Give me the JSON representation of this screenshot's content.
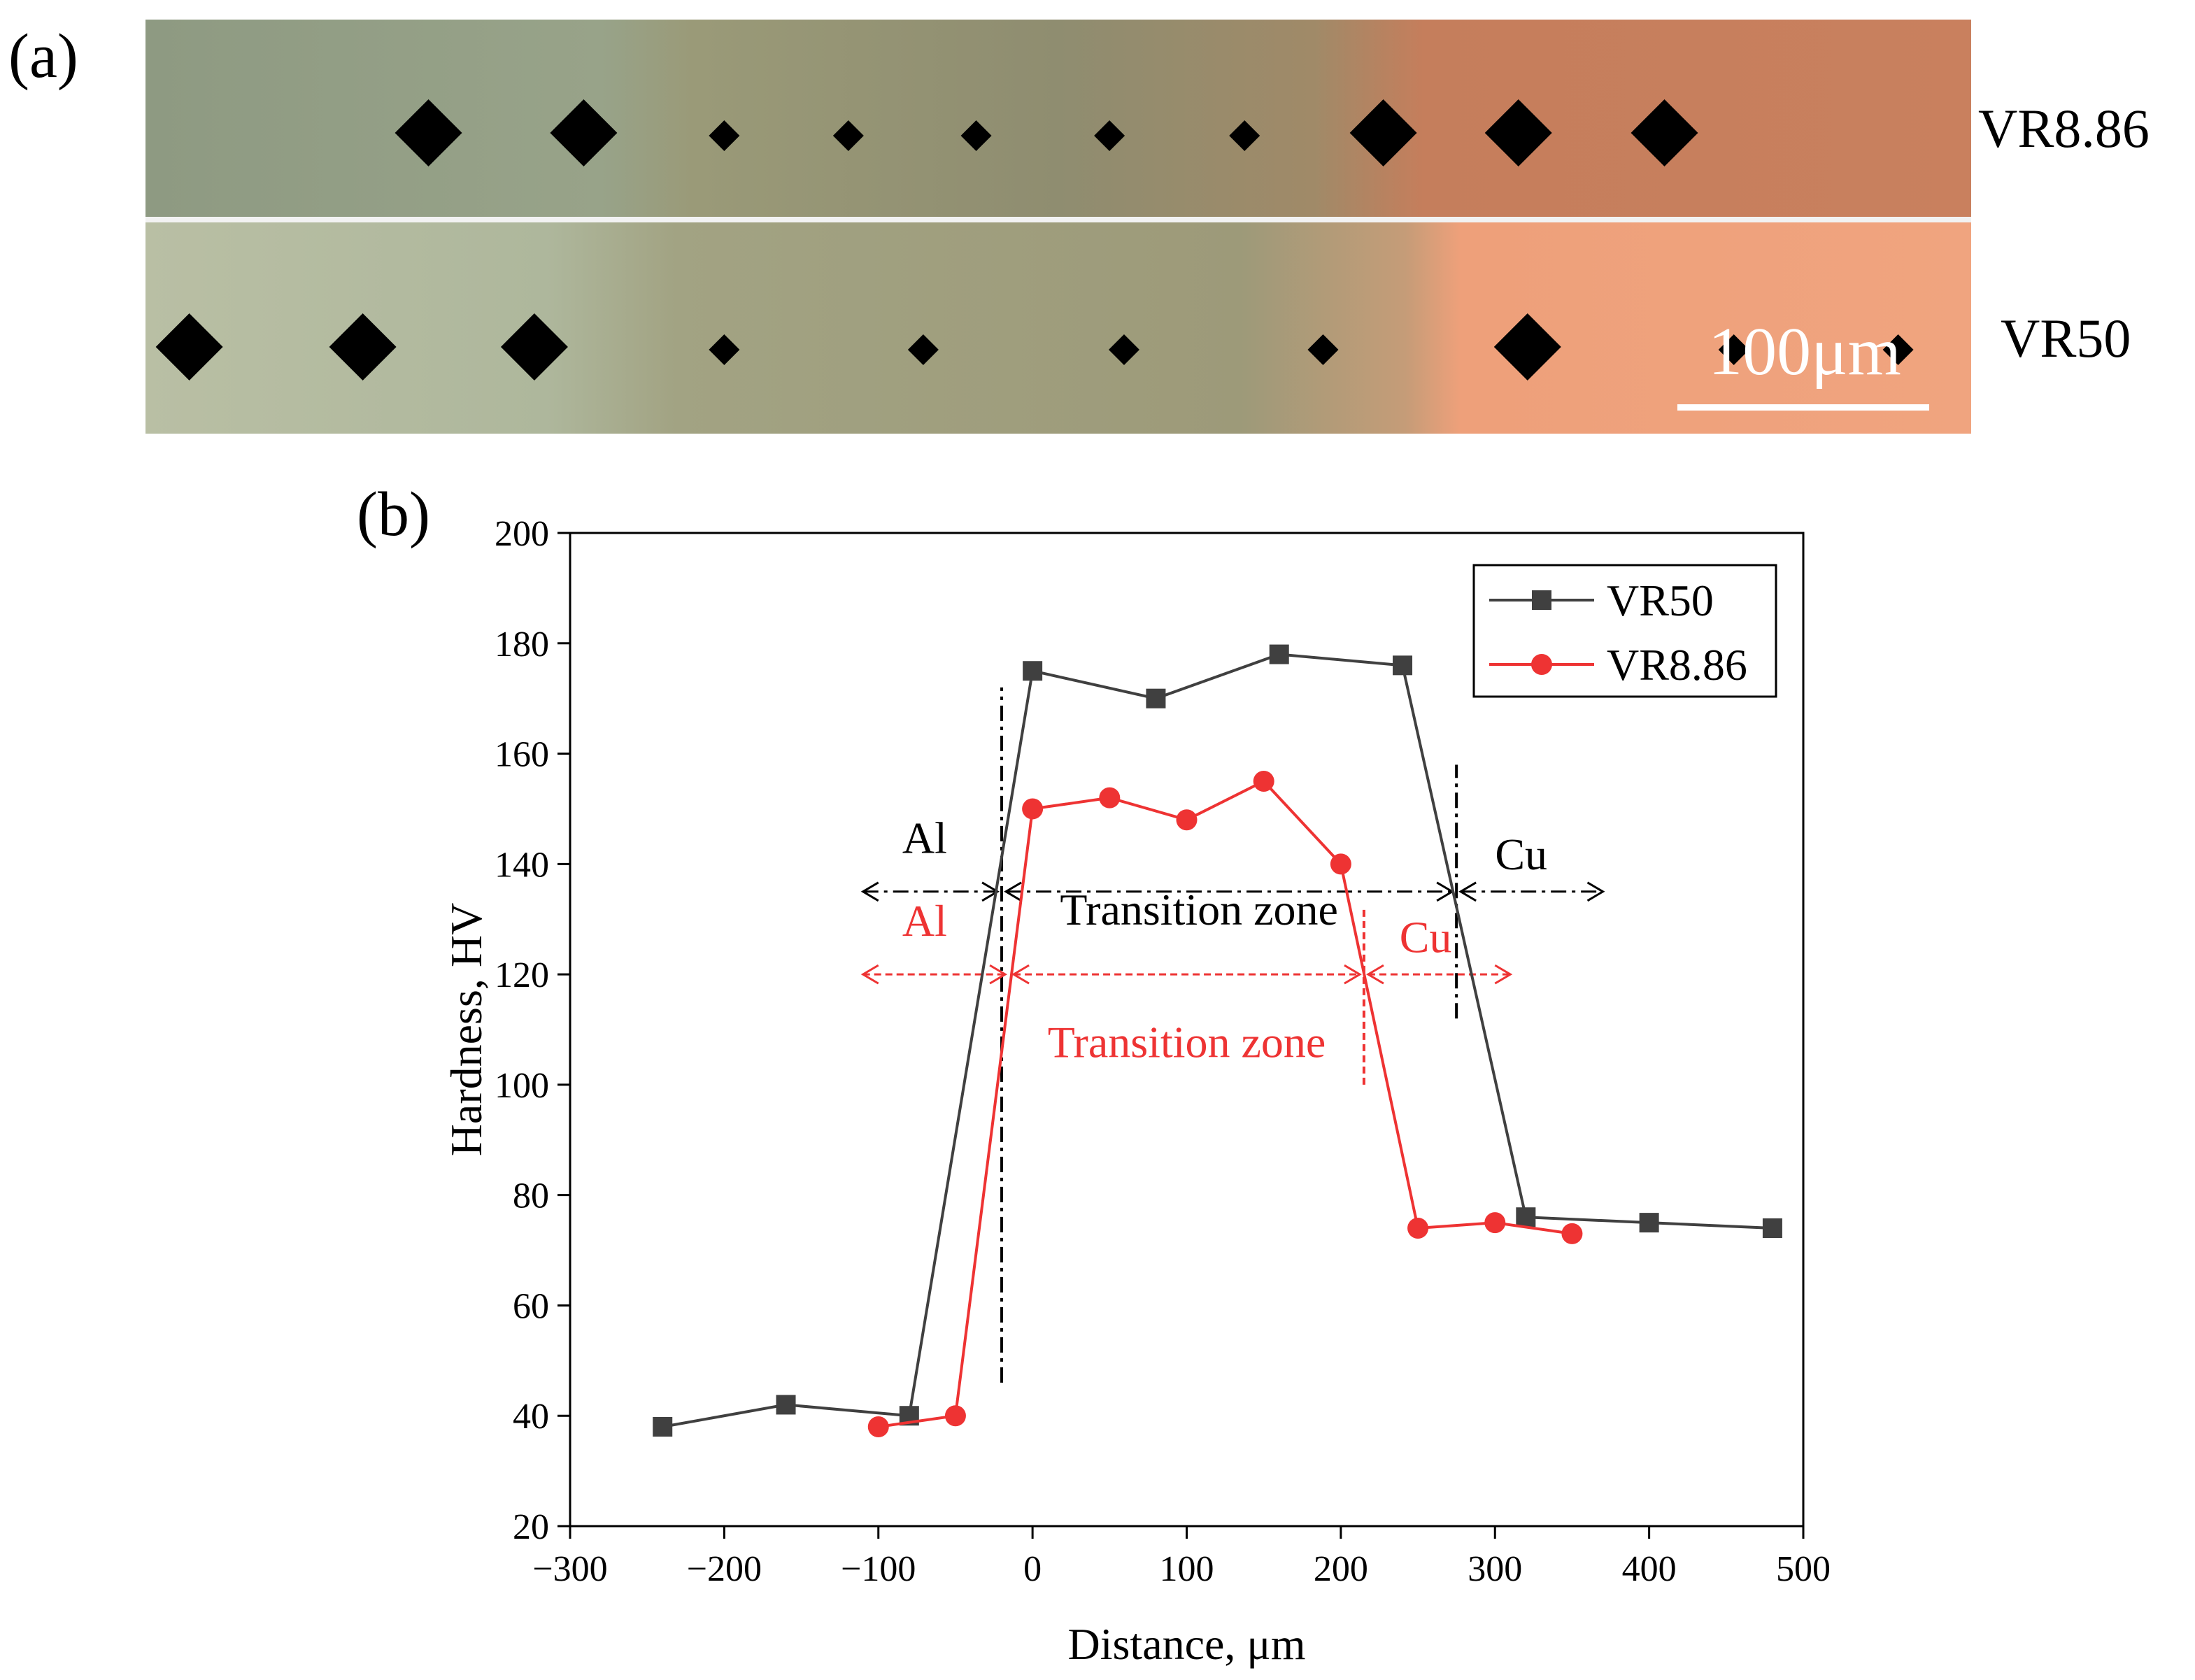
{
  "panel_a": {
    "label": "(a)",
    "scale_bar_label": "100μm",
    "rows": [
      {
        "name": "VR8.86",
        "indent_positions": [
          0.155,
          0.24,
          0.317,
          0.385,
          0.455,
          0.528,
          0.602,
          0.678,
          0.752,
          0.832
        ],
        "indent_sizes": [
          1,
          1,
          0,
          0,
          0,
          0,
          0,
          1,
          1,
          1
        ]
      },
      {
        "name": "VR50",
        "indent_positions": [
          0.024,
          0.119,
          0.213,
          0.317,
          0.426,
          0.536,
          0.645,
          0.757,
          0.87,
          0.96
        ],
        "indent_sizes": [
          1,
          1,
          1,
          0,
          0,
          0,
          0,
          1,
          0,
          0
        ]
      }
    ]
  },
  "chart_data": {
    "type": "line",
    "panel_label": "(b)",
    "xlabel": "Distance, μm",
    "ylabel": "Hardness, HV",
    "xlim": [
      -300,
      500
    ],
    "ylim": [
      20,
      200
    ],
    "xticks": [
      -300,
      -200,
      -100,
      0,
      100,
      200,
      300,
      400,
      500
    ],
    "yticks": [
      20,
      40,
      60,
      80,
      100,
      120,
      140,
      160,
      180,
      200
    ],
    "legend_position": "top-right",
    "series": [
      {
        "name": "VR50",
        "color": "#404040",
        "marker": "square",
        "x": [
          -240,
          -160,
          -80,
          0,
          80,
          160,
          240,
          320,
          400,
          480
        ],
        "y": [
          38,
          42,
          40,
          175,
          170,
          178,
          176,
          76,
          75,
          74
        ]
      },
      {
        "name": "VR8.86",
        "color": "#ee3333",
        "marker": "circle",
        "x": [
          -100,
          -50,
          0,
          50,
          100,
          150,
          200,
          250,
          300,
          350
        ],
        "y": [
          38,
          40,
          150,
          152,
          148,
          155,
          140,
          74,
          75,
          73
        ]
      }
    ],
    "annotations": {
      "black_zones": {
        "color": "#000000",
        "boundaries": [
          -20,
          275
        ],
        "line_y": 135,
        "extent": [
          -110,
          370
        ],
        "divider_spans": [
          {
            "x": -20,
            "y": [
              46,
              172
            ]
          },
          {
            "x": 275,
            "y": [
              112,
              158
            ]
          }
        ],
        "labels": [
          {
            "text": "Al",
            "x": -70,
            "y": 142
          },
          {
            "text": "Transition zone",
            "x": 108,
            "y": 129
          },
          {
            "text": "Cu",
            "x": 317,
            "y": 139
          }
        ]
      },
      "red_zones": {
        "color": "#ee3333",
        "boundaries": [
          -15,
          215
        ],
        "line_y": 120,
        "extent": [
          -110,
          310
        ],
        "divider_spans": [
          {
            "x": 215,
            "y": [
              100,
              132
            ]
          }
        ],
        "labels": [
          {
            "text": "Al",
            "x": -70,
            "y": 127
          },
          {
            "text": "Cu",
            "x": 255,
            "y": 124
          },
          {
            "text": "Transition zone",
            "x": 100,
            "y": 105
          }
        ]
      }
    }
  }
}
